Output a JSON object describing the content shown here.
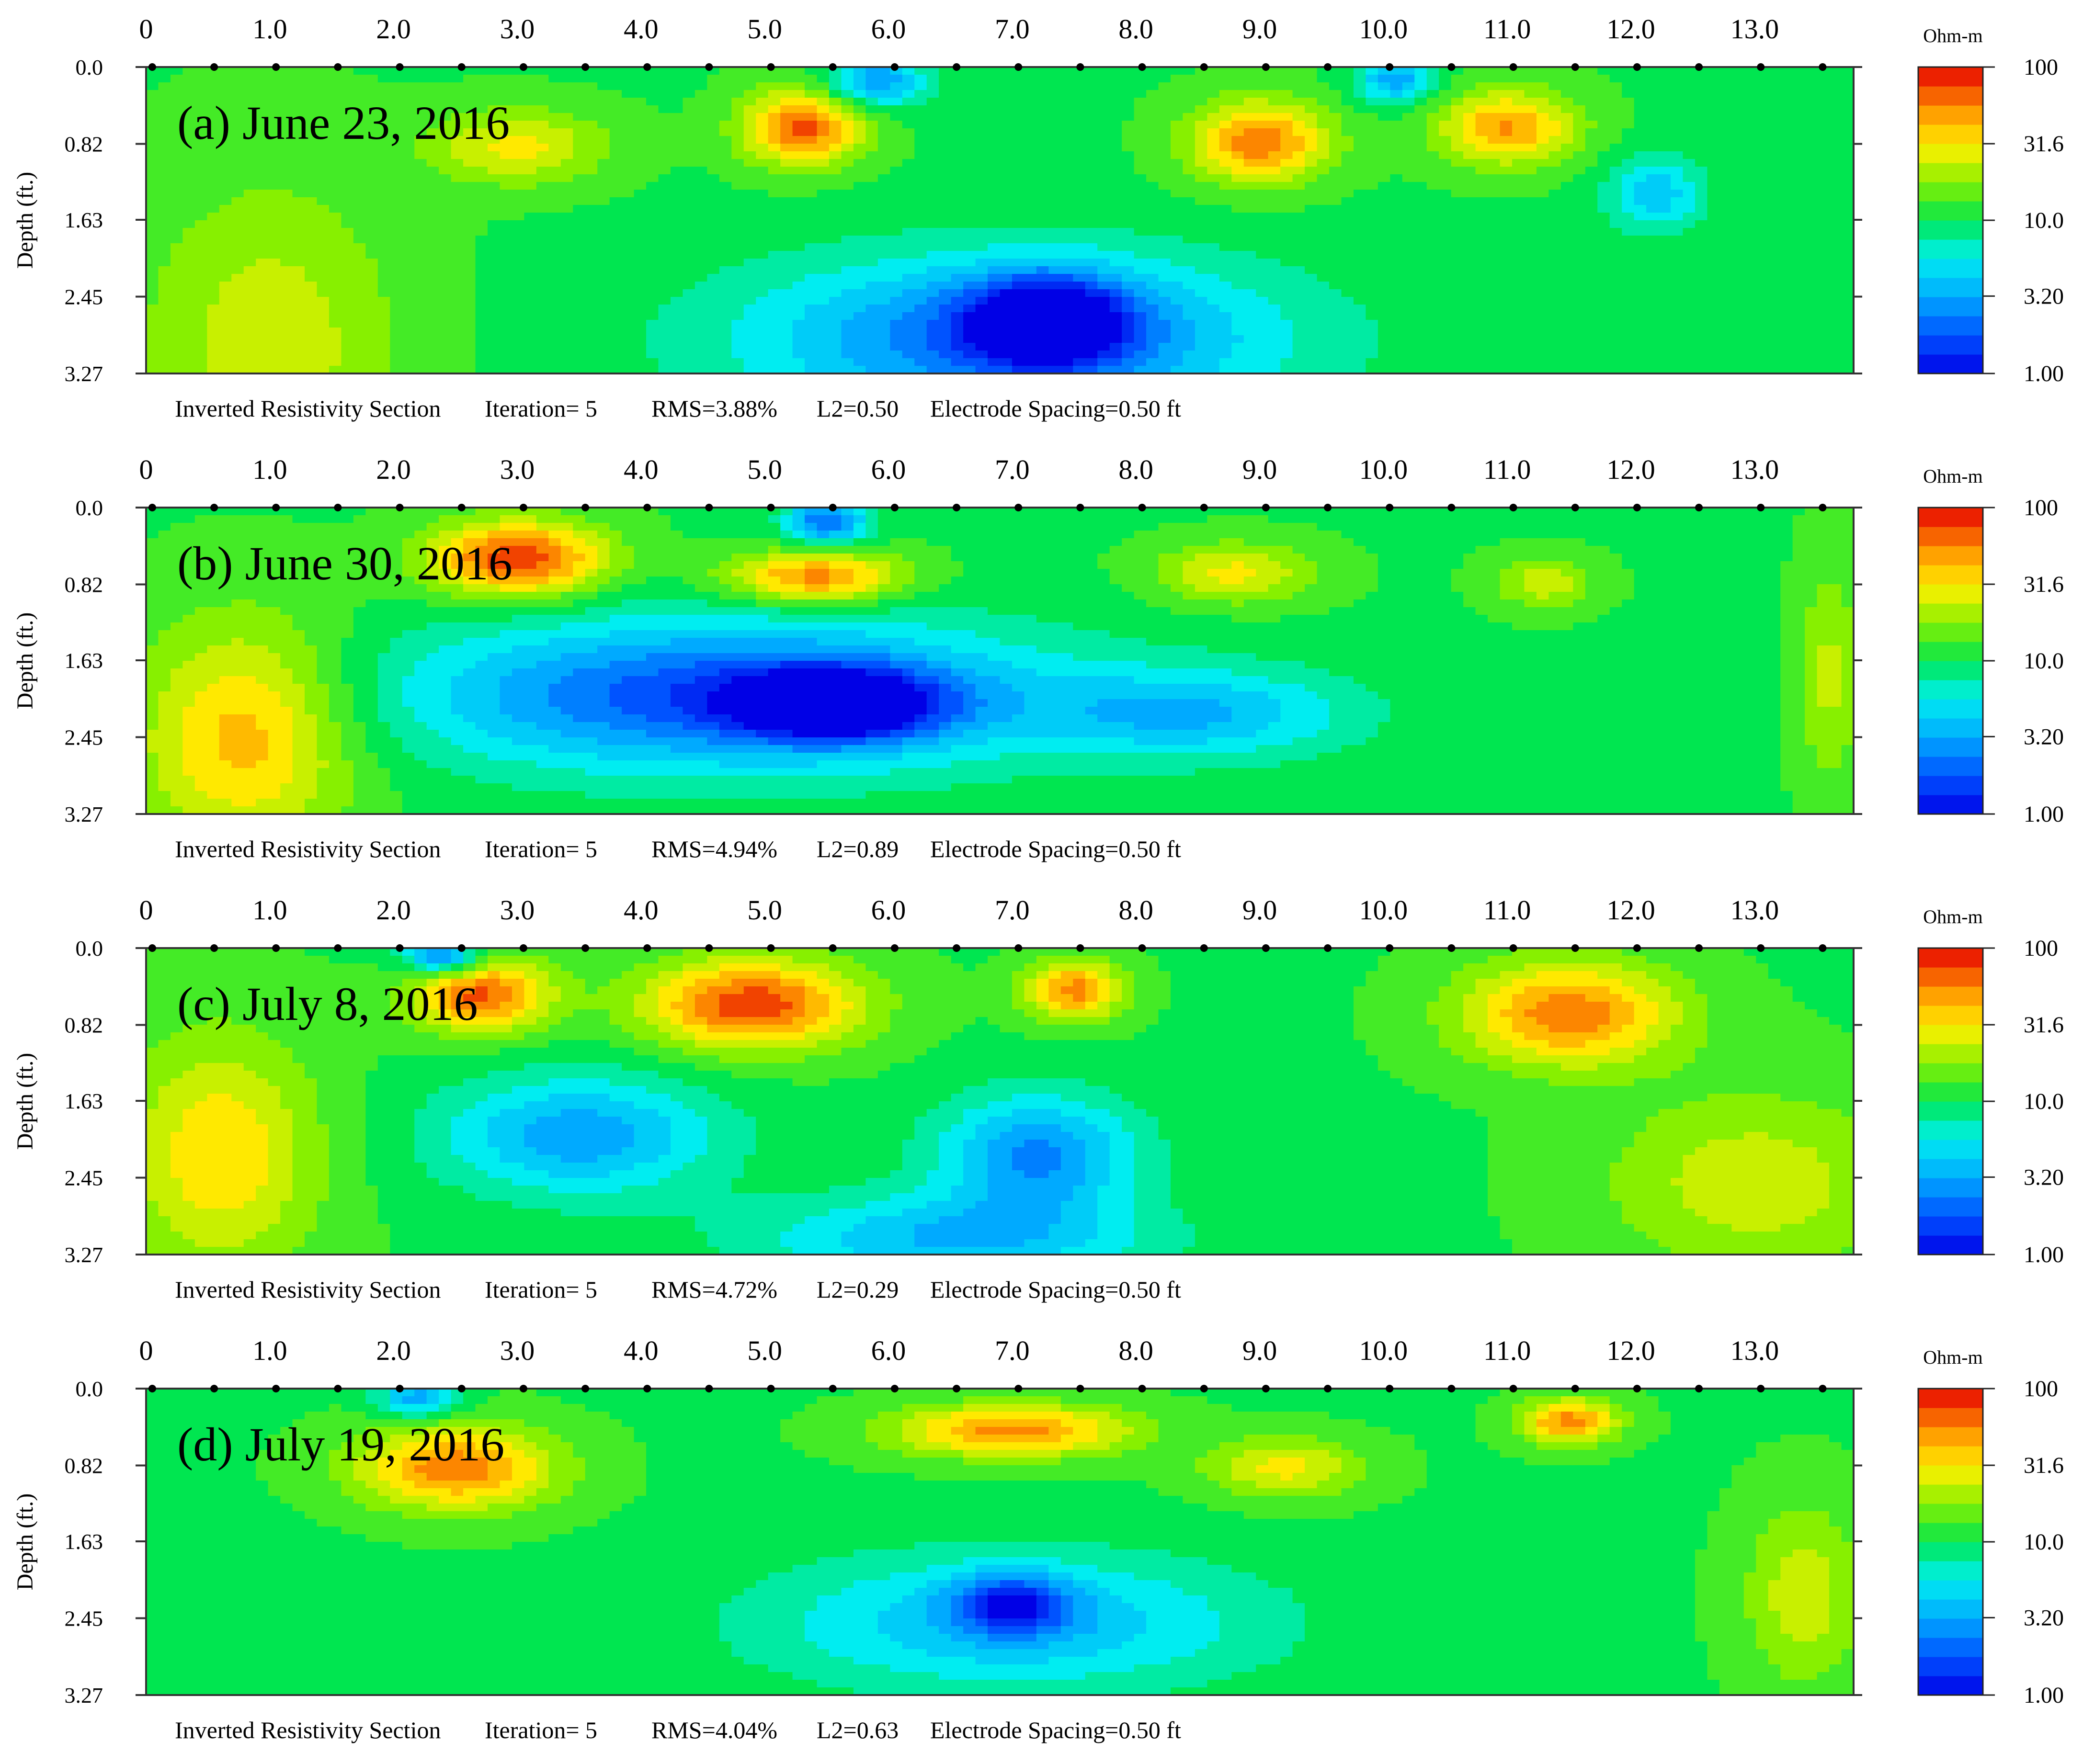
{
  "chart_data": [
    {
      "type": "heatmap",
      "panel_label": "(a) June 23, 2016",
      "x_ticks": [
        "0",
        "1.0",
        "2.0",
        "3.0",
        "4.0",
        "5.0",
        "6.0",
        "7.0",
        "8.0",
        "9.0",
        "10.0",
        "11.0",
        "12.0",
        "13.0"
      ],
      "y_ticks": [
        "0.0",
        "0.82",
        "1.63",
        "2.45",
        "3.27"
      ],
      "ylabel": "Depth (ft.)",
      "colorbar": {
        "unit": "Ohm-m",
        "ticks": [
          "100",
          "31.6",
          "10.0",
          "3.20",
          "1.00"
        ],
        "scale": "log",
        "range": [
          1,
          100
        ]
      },
      "caption": {
        "section": "Inverted Resistivity Section",
        "iteration": "Iteration= 5",
        "rms": "RMS=3.88%",
        "l2": "L2=0.50",
        "spacing": "Electrode Spacing=0.50 ft"
      },
      "xlim": [
        0,
        13.8
      ],
      "ylim": [
        0,
        3.27
      ],
      "blobs": [
        {
          "x": 1.0,
          "y": 3.0,
          "rx": 1.3,
          "ry": 2.2,
          "value": 25
        },
        {
          "x": 3.0,
          "y": 0.85,
          "rx": 0.9,
          "ry": 0.5,
          "value": 30
        },
        {
          "x": 5.3,
          "y": 0.65,
          "rx": 0.6,
          "ry": 0.5,
          "value": 70
        },
        {
          "x": 5.9,
          "y": 0.15,
          "rx": 0.5,
          "ry": 0.35,
          "value": 2.8
        },
        {
          "x": 9.0,
          "y": 0.8,
          "rx": 0.7,
          "ry": 0.55,
          "value": 60
        },
        {
          "x": 11.0,
          "y": 0.65,
          "rx": 0.7,
          "ry": 0.5,
          "value": 50
        },
        {
          "x": 10.1,
          "y": 0.15,
          "rx": 0.4,
          "ry": 0.3,
          "value": 3.0
        },
        {
          "x": 7.0,
          "y": 2.9,
          "rx": 2.7,
          "ry": 1.1,
          "value": 2.0
        },
        {
          "x": 7.3,
          "y": 2.7,
          "rx": 0.8,
          "ry": 0.6,
          "value": 1.4
        },
        {
          "x": 12.2,
          "y": 1.35,
          "rx": 0.5,
          "ry": 0.5,
          "value": 4.0
        }
      ]
    },
    {
      "type": "heatmap",
      "panel_label": "(b) June 30, 2016",
      "x_ticks": [
        "0",
        "1.0",
        "2.0",
        "3.0",
        "4.0",
        "5.0",
        "6.0",
        "7.0",
        "8.0",
        "9.0",
        "10.0",
        "11.0",
        "12.0",
        "13.0"
      ],
      "y_ticks": [
        "0.0",
        "0.82",
        "1.63",
        "2.45",
        "3.27"
      ],
      "ylabel": "Depth (ft.)",
      "colorbar": {
        "unit": "Ohm-m",
        "ticks": [
          "100",
          "31.6",
          "10.0",
          "3.20",
          "1.00"
        ],
        "scale": "log",
        "range": [
          1,
          100
        ]
      },
      "caption": {
        "section": "Inverted Resistivity Section",
        "iteration": "Iteration= 5",
        "rms": "RMS=4.94%",
        "l2": "L2=0.89",
        "spacing": "Electrode Spacing=0.50 ft"
      },
      "xlim": [
        0,
        13.8
      ],
      "ylim": [
        0,
        3.27
      ],
      "blobs": [
        {
          "x": 0.8,
          "y": 2.4,
          "rx": 1.1,
          "ry": 1.5,
          "value": 45
        },
        {
          "x": 3.0,
          "y": 0.55,
          "rx": 0.9,
          "ry": 0.5,
          "value": 85
        },
        {
          "x": 5.4,
          "y": 0.75,
          "rx": 0.9,
          "ry": 0.35,
          "value": 60
        },
        {
          "x": 5.5,
          "y": 0.15,
          "rx": 0.4,
          "ry": 0.3,
          "value": 2.0
        },
        {
          "x": 4.7,
          "y": 2.0,
          "rx": 3.2,
          "ry": 1.0,
          "value": 1.6
        },
        {
          "x": 5.6,
          "y": 2.1,
          "rx": 1.0,
          "ry": 0.45,
          "value": 1.1
        },
        {
          "x": 8.8,
          "y": 0.7,
          "rx": 0.8,
          "ry": 0.4,
          "value": 30
        },
        {
          "x": 11.3,
          "y": 0.8,
          "rx": 0.5,
          "ry": 0.35,
          "value": 25
        },
        {
          "x": 8.5,
          "y": 2.2,
          "rx": 1.6,
          "ry": 0.6,
          "value": 4.0
        },
        {
          "x": 13.6,
          "y": 1.8,
          "rx": 0.3,
          "ry": 1.5,
          "value": 22
        }
      ]
    },
    {
      "type": "heatmap",
      "panel_label": "(c) July 8, 2016",
      "x_ticks": [
        "0",
        "1.0",
        "2.0",
        "3.0",
        "4.0",
        "5.0",
        "6.0",
        "7.0",
        "8.0",
        "9.0",
        "10.0",
        "11.0",
        "12.0",
        "13.0"
      ],
      "y_ticks": [
        "0.0",
        "0.82",
        "1.63",
        "2.45",
        "3.27"
      ],
      "ylabel": "Depth (ft.)",
      "colorbar": {
        "unit": "Ohm-m",
        "ticks": [
          "100",
          "31.6",
          "10.0",
          "3.20",
          "1.00"
        ],
        "scale": "log",
        "range": [
          1,
          100
        ]
      },
      "caption": {
        "section": "Inverted Resistivity Section",
        "iteration": "Iteration= 5",
        "rms": "RMS=4.72%",
        "l2": "L2=0.29",
        "spacing": "Electrode Spacing=0.50 ft"
      },
      "xlim": [
        0,
        13.8
      ],
      "ylim": [
        0,
        3.27
      ],
      "blobs": [
        {
          "x": 0.6,
          "y": 2.2,
          "rx": 1.0,
          "ry": 1.6,
          "value": 35
        },
        {
          "x": 2.7,
          "y": 0.5,
          "rx": 0.7,
          "ry": 0.5,
          "value": 70
        },
        {
          "x": 2.4,
          "y": 0.1,
          "rx": 0.4,
          "ry": 0.25,
          "value": 2.0
        },
        {
          "x": 4.9,
          "y": 0.6,
          "rx": 1.1,
          "ry": 0.6,
          "value": 80
        },
        {
          "x": 7.5,
          "y": 0.45,
          "rx": 0.5,
          "ry": 0.4,
          "value": 55
        },
        {
          "x": 11.5,
          "y": 0.7,
          "rx": 1.1,
          "ry": 0.7,
          "value": 60
        },
        {
          "x": 3.5,
          "y": 2.0,
          "rx": 1.4,
          "ry": 0.8,
          "value": 3.0
        },
        {
          "x": 7.2,
          "y": 2.2,
          "rx": 1.0,
          "ry": 0.8,
          "value": 2.6
        },
        {
          "x": 6.5,
          "y": 3.1,
          "rx": 2.0,
          "ry": 0.6,
          "value": 3.6
        },
        {
          "x": 13.0,
          "y": 2.5,
          "rx": 1.5,
          "ry": 1.2,
          "value": 25
        }
      ]
    },
    {
      "type": "heatmap",
      "panel_label": "(d) July 19, 2016",
      "x_ticks": [
        "0",
        "1.0",
        "2.0",
        "3.0",
        "4.0",
        "5.0",
        "6.0",
        "7.0",
        "8.0",
        "9.0",
        "10.0",
        "11.0",
        "12.0",
        "13.0"
      ],
      "y_ticks": [
        "0.0",
        "0.82",
        "1.63",
        "2.45",
        "3.27"
      ],
      "ylabel": "Depth (ft.)",
      "colorbar": {
        "unit": "Ohm-m",
        "ticks": [
          "100",
          "31.6",
          "10.0",
          "3.20",
          "1.00"
        ],
        "scale": "log",
        "range": [
          1,
          100
        ]
      },
      "caption": {
        "section": "Inverted Resistivity Section",
        "iteration": "Iteration= 5",
        "rms": "RMS=4.04%",
        "l2": "L2=0.63",
        "spacing": "Electrode Spacing=0.50 ft"
      },
      "xlim": [
        0,
        13.8
      ],
      "ylim": [
        0,
        3.27
      ],
      "blobs": [
        {
          "x": 2.5,
          "y": 0.85,
          "rx": 1.0,
          "ry": 0.55,
          "value": 60
        },
        {
          "x": 2.2,
          "y": 0.1,
          "rx": 0.4,
          "ry": 0.25,
          "value": 3.0
        },
        {
          "x": 7.0,
          "y": 0.45,
          "rx": 1.2,
          "ry": 0.35,
          "value": 55
        },
        {
          "x": 9.2,
          "y": 0.85,
          "rx": 0.8,
          "ry": 0.4,
          "value": 30
        },
        {
          "x": 11.5,
          "y": 0.35,
          "rx": 0.5,
          "ry": 0.3,
          "value": 55
        },
        {
          "x": 7.0,
          "y": 2.5,
          "rx": 2.5,
          "ry": 0.9,
          "value": 3.6
        },
        {
          "x": 7.0,
          "y": 2.3,
          "rx": 0.6,
          "ry": 0.4,
          "value": 2.6
        },
        {
          "x": 13.4,
          "y": 2.2,
          "rx": 0.6,
          "ry": 1.2,
          "value": 25
        },
        {
          "x": 1.0,
          "y": 2.5,
          "rx": 1.0,
          "ry": 1.0,
          "value": 10
        }
      ]
    }
  ]
}
